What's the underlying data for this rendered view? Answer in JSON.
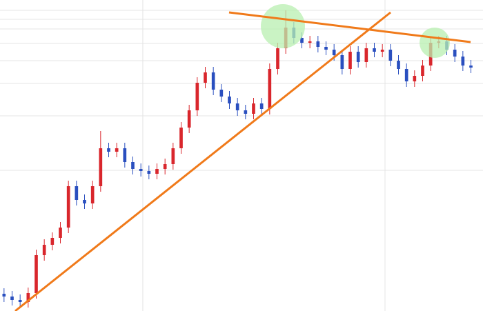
{
  "chart_data": {
    "type": "candlestick",
    "open": [
      25,
      21,
      16,
      13,
      26,
      81,
      96,
      106,
      121,
      181,
      161,
      156,
      181,
      236,
      231,
      236,
      216,
      206,
      203,
      199,
      206,
      213,
      236,
      266,
      291,
      331,
      346,
      321,
      311,
      301,
      291,
      286,
      301,
      293,
      351,
      381,
      411,
      396,
      389,
      391,
      383,
      379,
      371,
      351,
      376,
      361,
      381,
      376,
      379,
      363,
      351,
      333,
      341,
      356,
      389,
      391,
      379,
      369,
      356
    ],
    "high": [
      33,
      29,
      24,
      34,
      89,
      104,
      114,
      129,
      189,
      189,
      169,
      189,
      261,
      244,
      244,
      244,
      224,
      214,
      211,
      214,
      221,
      244,
      274,
      299,
      339,
      354,
      354,
      329,
      319,
      309,
      299,
      309,
      309,
      359,
      389,
      436,
      419,
      404,
      399,
      399,
      391,
      387,
      379,
      384,
      384,
      389,
      389,
      387,
      387,
      371,
      359,
      349,
      364,
      397,
      399,
      399,
      387,
      377,
      364
    ],
    "low": [
      13,
      8,
      5,
      5,
      18,
      73,
      88,
      98,
      113,
      153,
      148,
      148,
      173,
      223,
      223,
      208,
      198,
      195,
      191,
      191,
      198,
      205,
      228,
      258,
      283,
      323,
      313,
      303,
      293,
      283,
      278,
      278,
      285,
      285,
      343,
      373,
      388,
      381,
      381,
      375,
      371,
      363,
      343,
      343,
      353,
      353,
      368,
      368,
      355,
      343,
      325,
      325,
      333,
      348,
      381,
      371,
      361,
      348,
      345
    ],
    "close": [
      21,
      16,
      13,
      26,
      81,
      96,
      106,
      121,
      181,
      161,
      156,
      181,
      236,
      231,
      236,
      216,
      206,
      203,
      199,
      206,
      213,
      236,
      266,
      291,
      331,
      346,
      321,
      311,
      301,
      291,
      286,
      301,
      293,
      351,
      381,
      411,
      396,
      389,
      391,
      383,
      379,
      371,
      351,
      376,
      361,
      381,
      376,
      379,
      363,
      351,
      333,
      341,
      356,
      389,
      391,
      379,
      369,
      356,
      353
    ],
    "up_color": "#d9262c",
    "down_color": "#2a4fbf",
    "ylim": [
      0,
      451
    ],
    "yticks": [
      436,
      423,
      409,
      388,
      363,
      330,
      283,
      204
    ],
    "xlim": [
      -0.5,
      59.5
    ],
    "xticks": [
      17.24,
      47.33
    ],
    "grid": true
  }
}
